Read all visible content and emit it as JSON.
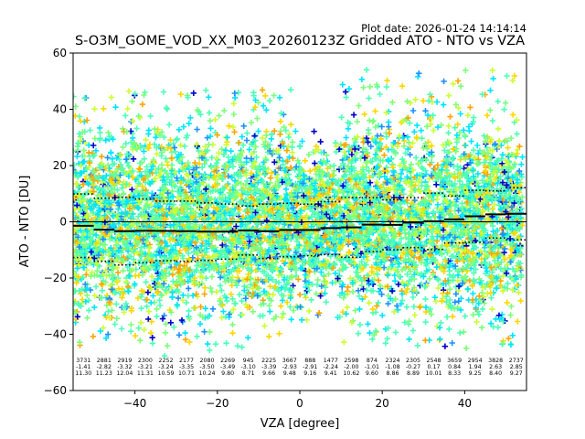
{
  "chart_data": {
    "type": "scatter",
    "plot_date": "Plot date: 2026-01-24 14:14:14",
    "title": "S-O3M_GOME_VOD_XX_M03_20260123Z Gridded ATO - NTO vs VZA",
    "xlabel": "VZA [degree]",
    "ylabel": "ATO - NTO [DU]",
    "xlim": [
      -55,
      55
    ],
    "ylim": [
      -60,
      60
    ],
    "xticks": [
      -40,
      -20,
      0,
      20,
      40
    ],
    "yticks": [
      -60,
      -40,
      -20,
      0,
      20,
      40,
      60
    ],
    "xtick_labels": [
      "−40",
      "−20",
      "0",
      "20",
      "40"
    ],
    "ytick_labels": [
      "−60",
      "−40",
      "−20",
      "0",
      "20",
      "40",
      "60"
    ],
    "marker": "+",
    "point_colors": [
      "#0000cc",
      "#1e90ff",
      "#00e5ff",
      "#4dffb8",
      "#7dff7a",
      "#ccff33",
      "#ffd700",
      "#ffa500"
    ],
    "scatter_bands": [
      {
        "x0": -55,
        "x1": -1,
        "core_low": -20,
        "core_high": 20,
        "wide_low": -45,
        "wide_high": 47
      },
      {
        "x0": -1,
        "x1": 10,
        "core_low": -15,
        "core_high": 15,
        "wide_low": -35,
        "wide_high": 30
      },
      {
        "x0": 10,
        "x1": 54,
        "core_low": -18,
        "core_high": 22,
        "wide_low": -45,
        "wide_high": 55
      }
    ],
    "bins": [
      {
        "x": -52.5,
        "count": "3731",
        "mean": "-1.41",
        "std": "11.30"
      },
      {
        "x": -47.5,
        "count": "2881",
        "mean": "-2.82",
        "std": "11.23"
      },
      {
        "x": -42.5,
        "count": "2919",
        "mean": "-3.32",
        "std": "12.04"
      },
      {
        "x": -37.5,
        "count": "2300",
        "mean": "-3.21",
        "std": "11.31"
      },
      {
        "x": -32.5,
        "count": "2252",
        "mean": "-3.24",
        "std": "10.59"
      },
      {
        "x": -27.5,
        "count": "2177",
        "mean": "-3.35",
        "std": "10.71"
      },
      {
        "x": -22.5,
        "count": "2080",
        "mean": "-3.50",
        "std": "10.24"
      },
      {
        "x": -17.5,
        "count": "2269",
        "mean": "-3.49",
        "std": "9.80"
      },
      {
        "x": -12.5,
        "count": "945",
        "mean": "-3.10",
        "std": "8.71"
      },
      {
        "x": -7.5,
        "count": "2225",
        "mean": "-3.39",
        "std": "9.66"
      },
      {
        "x": -2.5,
        "count": "3667",
        "mean": "-2.93",
        "std": "9.48"
      },
      {
        "x": 2.5,
        "count": "888",
        "mean": "-2.91",
        "std": "9.16"
      },
      {
        "x": 7.5,
        "count": "1477",
        "mean": "-2.24",
        "std": "9.41"
      },
      {
        "x": 12.5,
        "count": "2598",
        "mean": "-2.00",
        "std": "10.62"
      },
      {
        "x": 17.5,
        "count": "874",
        "mean": "-1.01",
        "std": "9.60"
      },
      {
        "x": 22.5,
        "count": "2324",
        "mean": "-1.08",
        "std": "8.86"
      },
      {
        "x": 27.5,
        "count": "2305",
        "mean": "-0.27",
        "std": "8.89"
      },
      {
        "x": 32.5,
        "count": "2548",
        "mean": "0.17",
        "std": "10.01"
      },
      {
        "x": 37.5,
        "count": "3659",
        "mean": "0.84",
        "std": "8.33"
      },
      {
        "x": 42.5,
        "count": "2954",
        "mean": "1.94",
        "std": "9.25"
      },
      {
        "x": 47.5,
        "count": "3828",
        "mean": "2.63",
        "std": "8.40"
      },
      {
        "x": 52.5,
        "count": "2737",
        "mean": "2.85",
        "std": "9.27"
      }
    ]
  }
}
